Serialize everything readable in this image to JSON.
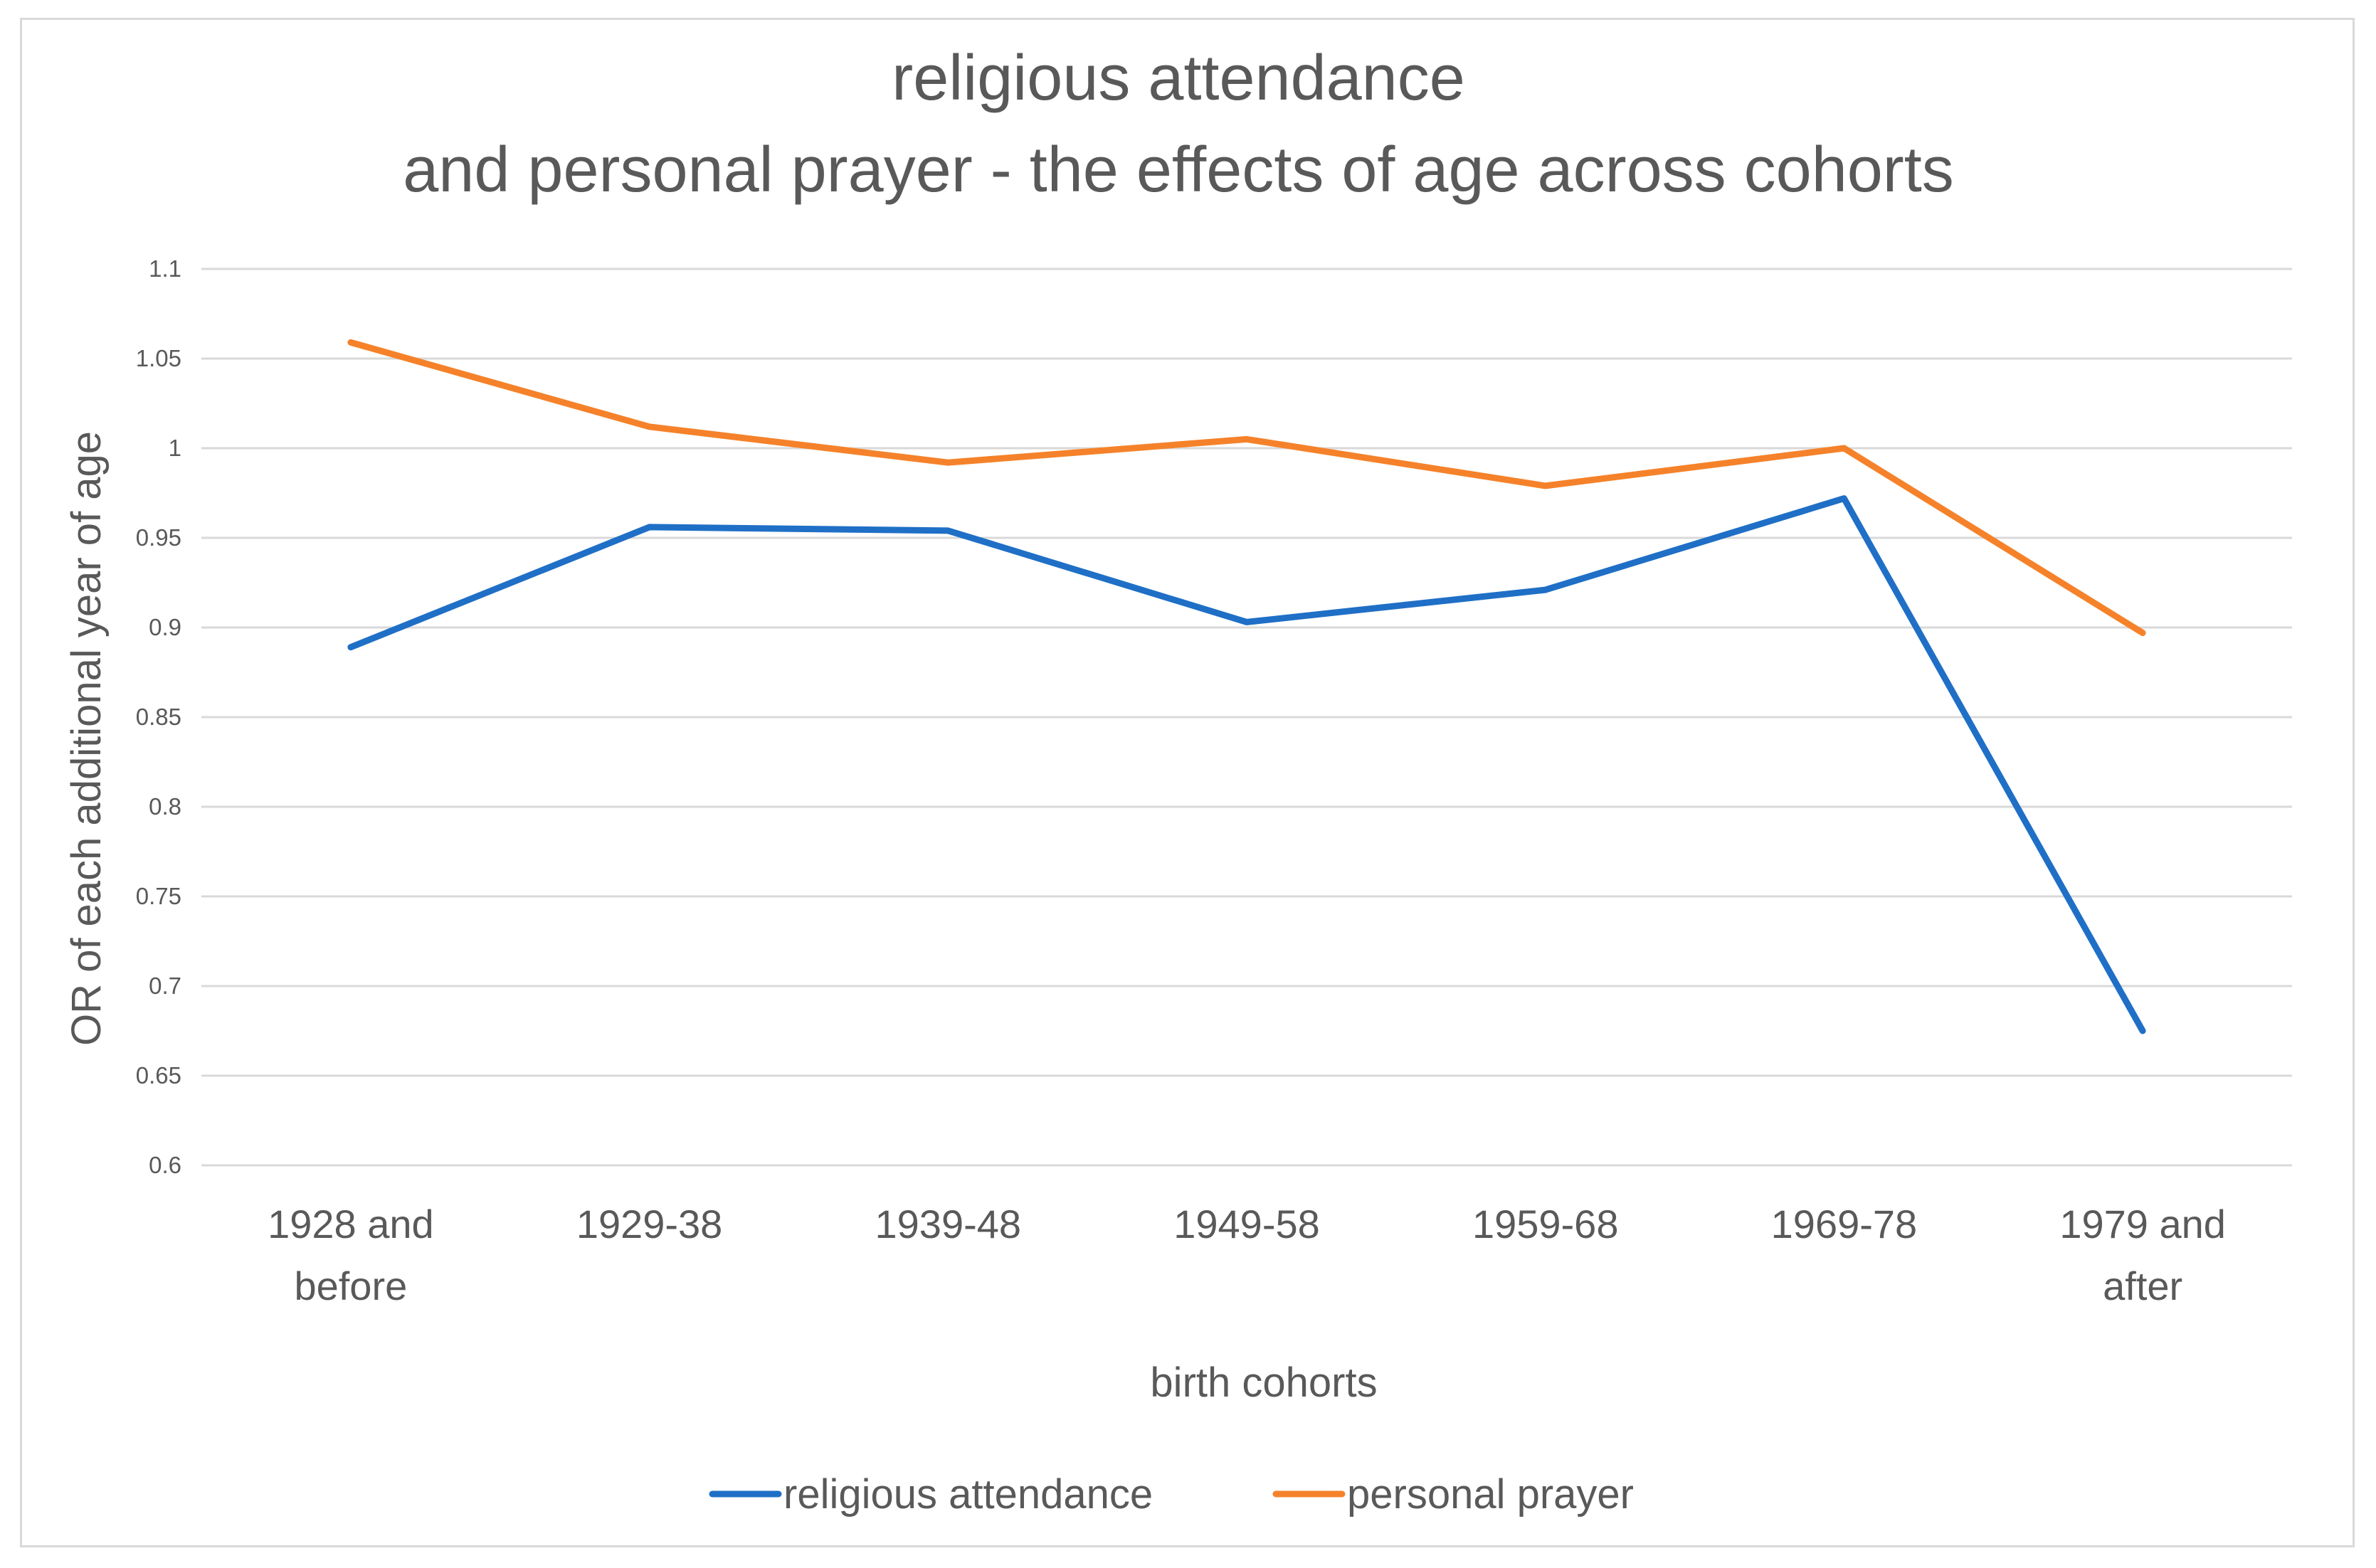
{
  "chart_data": {
    "type": "line",
    "title_lines": [
      "religious attendance",
      "and personal prayer - the effects of age across cohorts"
    ],
    "xlabel": "birth cohorts",
    "ylabel": "OR of each additional year of age",
    "categories": [
      [
        "1928 and",
        "before"
      ],
      [
        "1929-38"
      ],
      [
        "1939-48"
      ],
      [
        "1949-58"
      ],
      [
        "1959-68"
      ],
      [
        "1969-78"
      ],
      [
        "1979 and",
        "after"
      ]
    ],
    "ylim": [
      0.6,
      1.1
    ],
    "yticks": [
      "0.6",
      "0.65",
      "0.7",
      "0.75",
      "0.8",
      "0.85",
      "0.9",
      "0.95",
      "1",
      "1.05",
      "1.1"
    ],
    "grid": true,
    "legend_position": "bottom",
    "series": [
      {
        "name": "religious attendance",
        "color": "#1f6fc6",
        "values": [
          0.889,
          0.956,
          0.954,
          0.903,
          0.921,
          0.972,
          0.675
        ]
      },
      {
        "name": "personal prayer",
        "color": "#f5822a",
        "values": [
          1.059,
          1.012,
          0.992,
          1.005,
          0.979,
          1.0,
          0.897
        ]
      }
    ]
  }
}
